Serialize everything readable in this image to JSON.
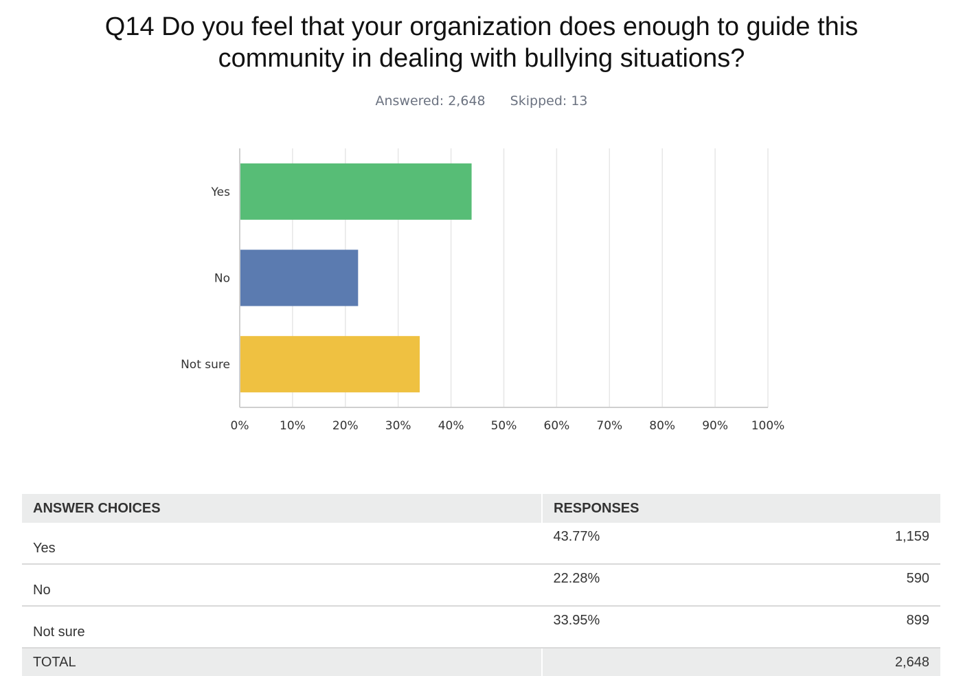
{
  "header": {
    "title": "Q14 Do you feel that your organization does enough to guide this community in dealing with bullying situations?",
    "answered": "Answered: 2,648",
    "skipped": "Skipped: 13"
  },
  "chart_data": {
    "type": "bar",
    "orientation": "horizontal",
    "title": "Q14 Do you feel that your organization does enough to guide this community in dealing with bullying situations?",
    "categories": [
      "Yes",
      "No",
      "Not sure"
    ],
    "values": [
      43.77,
      22.28,
      33.95
    ],
    "colors": [
      "#57bd76",
      "#5b7bb0",
      "#efc141"
    ],
    "xlim": [
      0,
      100
    ],
    "x_ticks": [
      "0%",
      "10%",
      "20%",
      "30%",
      "40%",
      "50%",
      "60%",
      "70%",
      "80%",
      "90%",
      "100%"
    ],
    "grid": true,
    "legend": "none"
  },
  "table": {
    "headers": [
      "ANSWER CHOICES",
      "RESPONSES"
    ],
    "rows": [
      {
        "choice": "Yes",
        "percent": "43.77%",
        "count": "1,159"
      },
      {
        "choice": "No",
        "percent": "22.28%",
        "count": "590"
      },
      {
        "choice": "Not sure",
        "percent": "33.95%",
        "count": "899"
      }
    ],
    "total_label": "TOTAL",
    "total_count": "2,648"
  }
}
